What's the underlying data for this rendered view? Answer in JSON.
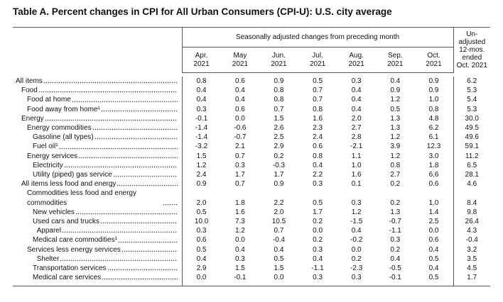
{
  "title": "Table A. Percent changes in CPI for All Urban Consumers (CPI-U): U.S. city average",
  "table": {
    "group_header": "Seasonally adjusted changes from preceding month",
    "columns": [
      "Apr. 2021",
      "May 2021",
      "Jun. 2021",
      "Jul. 2021",
      "Aug. 2021",
      "Sep. 2021",
      "Oct. 2021"
    ],
    "last_column": "Un-adjusted 12-mos. ended Oct. 2021",
    "rows": [
      {
        "label": "All items",
        "values": [
          "0.8",
          "0.6",
          "0.9",
          "0.5",
          "0.3",
          "0.4",
          "0.9",
          "6.2"
        ]
      },
      {
        "label": "Food",
        "values": [
          "0.4",
          "0.4",
          "0.8",
          "0.7",
          "0.4",
          "0.9",
          "0.9",
          "5.3"
        ]
      },
      {
        "label": "Food at home",
        "values": [
          "0.4",
          "0.4",
          "0.8",
          "0.7",
          "0.4",
          "1.2",
          "1.0",
          "5.4"
        ]
      },
      {
        "label": "Food away from home¹",
        "values": [
          "0.3",
          "0.6",
          "0.7",
          "0.8",
          "0.4",
          "0.5",
          "0.8",
          "5.3"
        ]
      },
      {
        "label": "Energy",
        "values": [
          "-0.1",
          "0.0",
          "1.5",
          "1.6",
          "2.0",
          "1.3",
          "4.8",
          "30.0"
        ]
      },
      {
        "label": "Energy commodities",
        "values": [
          "-1.4",
          "-0.6",
          "2.6",
          "2.3",
          "2.7",
          "1.3",
          "6.2",
          "49.5"
        ]
      },
      {
        "label": "Gasoline (all types)",
        "values": [
          "-1.4",
          "-0.7",
          "2.5",
          "2.4",
          "2.8",
          "1.2",
          "6.1",
          "49.6"
        ]
      },
      {
        "label": "Fuel oil¹",
        "values": [
          "-3.2",
          "2.1",
          "2.9",
          "0.6",
          "-2.1",
          "3.9",
          "12.3",
          "59.1"
        ]
      },
      {
        "label": "Energy services",
        "values": [
          "1.5",
          "0.7",
          "0.2",
          "0.8",
          "1.1",
          "1.2",
          "3.0",
          "11.2"
        ]
      },
      {
        "label": "Electricity",
        "values": [
          "1.2",
          "0.3",
          "-0.3",
          "0.4",
          "1.0",
          "0.8",
          "1.8",
          "6.5"
        ]
      },
      {
        "label": "Utility (piped) gas service",
        "values": [
          "2.4",
          "1.7",
          "1.7",
          "2.2",
          "1.6",
          "2.7",
          "6.6",
          "28.1"
        ]
      },
      {
        "label": "All items less food and energy",
        "values": [
          "0.9",
          "0.7",
          "0.9",
          "0.3",
          "0.1",
          "0.2",
          "0.6",
          "4.6"
        ]
      },
      {
        "label": "Commodities less food and energy commodities",
        "values": [
          "2.0",
          "1.8",
          "2.2",
          "0.5",
          "0.3",
          "0.2",
          "1.0",
          "8.4"
        ]
      },
      {
        "label": "New vehicles",
        "values": [
          "0.5",
          "1.6",
          "2.0",
          "1.7",
          "1.2",
          "1.3",
          "1.4",
          "9.8"
        ]
      },
      {
        "label": "Used cars and trucks",
        "values": [
          "10.0",
          "7.3",
          "10.5",
          "0.2",
          "-1.5",
          "-0.7",
          "2.5",
          "26.4"
        ]
      },
      {
        "label": "Apparel",
        "values": [
          "0.3",
          "1.2",
          "0.7",
          "0.0",
          "0.4",
          "-1.1",
          "0.0",
          "4.3"
        ]
      },
      {
        "label": "Medical care commodities¹",
        "values": [
          "0.6",
          "0.0",
          "-0.4",
          "0.2",
          "-0.2",
          "0.3",
          "0.6",
          "-0.4"
        ]
      },
      {
        "label": "Services less energy services",
        "values": [
          "0.5",
          "0.4",
          "0.4",
          "0.3",
          "0.0",
          "0.2",
          "0.4",
          "3.2"
        ]
      },
      {
        "label": "Shelter",
        "values": [
          "0.4",
          "0.3",
          "0.5",
          "0.4",
          "0.2",
          "0.4",
          "0.5",
          "3.5"
        ]
      },
      {
        "label": "Transportation services",
        "values": [
          "2.9",
          "1.5",
          "1.5",
          "-1.1",
          "-2.3",
          "-0.5",
          "0.4",
          "4.5"
        ]
      },
      {
        "label": "Medical care services",
        "values": [
          "0.0",
          "-0.1",
          "0.0",
          "0.3",
          "0.3",
          "-0.1",
          "0.5",
          "1.7"
        ]
      }
    ]
  }
}
